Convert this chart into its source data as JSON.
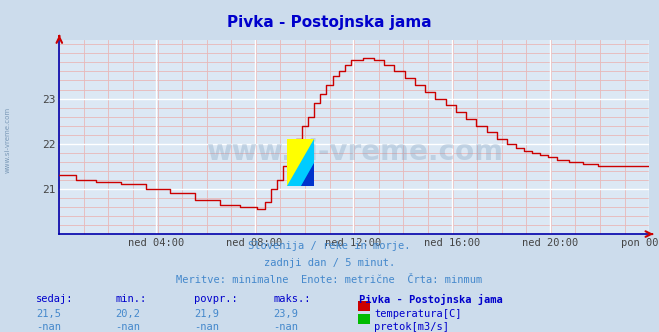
{
  "title": "Pivka - Postojnska jama",
  "bg_color": "#ccdcec",
  "plot_bg_color": "#dce8f4",
  "grid_color_major": "#ffffff",
  "grid_color_minor": "#e8b8b8",
  "line_color": "#cc0000",
  "line_width": 1.0,
  "yticks": [
    21,
    22,
    23
  ],
  "ylim": [
    20.0,
    24.3
  ],
  "xlim": [
    0,
    287
  ],
  "xtick_labels": [
    "ned 04:00",
    "ned 08:00",
    "ned 12:00",
    "ned 16:00",
    "ned 20:00",
    "pon 00:00"
  ],
  "xtick_positions": [
    47,
    95,
    143,
    191,
    239,
    287
  ],
  "subtitle_line1": "Slovenija / reke in morje.",
  "subtitle_line2": "zadnji dan / 5 minut.",
  "subtitle_line3": "Meritve: minimalne  Enote: metrične  Črta: minmum",
  "footer_col1_header": "sedaj:",
  "footer_col2_header": "min.:",
  "footer_col3_header": "povpr.:",
  "footer_col4_header": "maks.:",
  "footer_col5_header": "Pivka - Postojnska jama",
  "footer_row1": [
    "21,5",
    "20,2",
    "21,9",
    "23,9"
  ],
  "footer_row2": [
    "-nan",
    "-nan",
    "-nan",
    "-nan"
  ],
  "legend_temp_label": "temperatura[C]",
  "legend_flow_label": "pretok[m3/s]",
  "watermark_text": "www.si-vreme.com",
  "left_watermark": "www.si-vreme.com",
  "title_color": "#0000cc",
  "subtitle_color": "#4488cc",
  "footer_header_color": "#0000cc",
  "footer_value_color": "#4488cc",
  "axis_color": "#0000aa",
  "tick_color": "#444444"
}
